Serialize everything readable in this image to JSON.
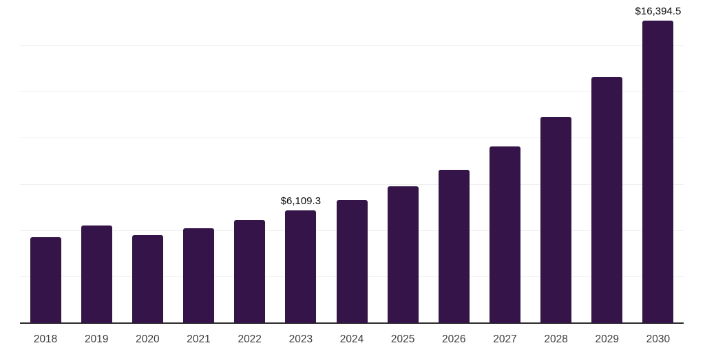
{
  "chart": {
    "background_color": "#ffffff",
    "bar_color": "#351549",
    "gridline_color": "#efefef",
    "axis_line_color": "#2b2b2b",
    "value_label_color": "#0a0a0a",
    "tick_label_color": "#3c3c3c"
  },
  "chart_data": {
    "type": "bar",
    "title": "",
    "xlabel": "",
    "ylabel": "",
    "categories": [
      "2018",
      "2019",
      "2020",
      "2021",
      "2022",
      "2023",
      "2024",
      "2025",
      "2026",
      "2027",
      "2028",
      "2029",
      "2030"
    ],
    "values": [
      4650,
      5280,
      4760,
      5140,
      5590,
      6109.3,
      6670,
      7420,
      8310,
      9560,
      11180,
      13340,
      16394.5
    ],
    "data_labels": [
      "",
      "",
      "",
      "",
      "",
      "$6,109.3",
      "",
      "",
      "",
      "",
      "",
      "",
      "$16,394.5"
    ],
    "ylim": [
      0,
      17500
    ],
    "gridline_interval": 2500,
    "grid": "horizontal-only",
    "y_axis_tick_labels_visible": false,
    "legend_position": "none"
  }
}
